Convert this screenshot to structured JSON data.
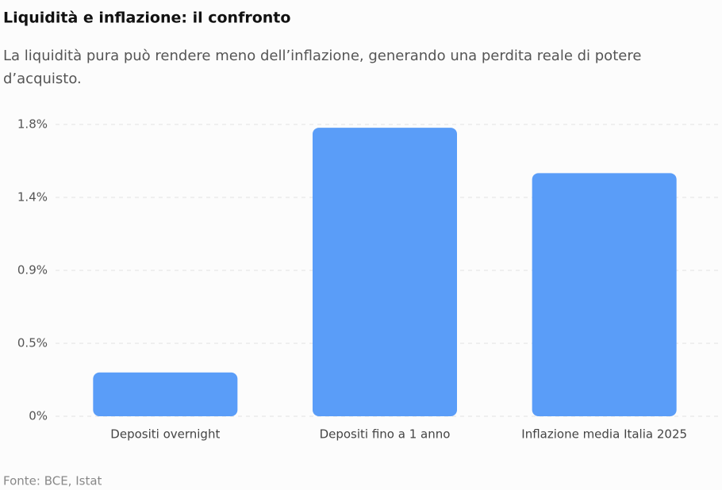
{
  "chart_data": {
    "type": "bar",
    "title": "Liquidità e inflazione: il confronto",
    "subtitle": [
      "La liquidità pura può rendere meno dell’inflazione, generando una perdita reale di potere",
      "d’acquisto."
    ],
    "categories": [
      "Depositi overnight",
      "Depositi fino a 1 anno",
      "Inflazione media Italia 2025"
    ],
    "values": [
      0.27,
      1.78,
      1.5
    ],
    "color": "#5a9df8",
    "ylim": [
      0,
      1.8
    ],
    "yticks": [
      {
        "value": 0,
        "label": "0%"
      },
      {
        "value": 0.45,
        "label": "0.5%"
      },
      {
        "value": 0.9,
        "label": "0.9%"
      },
      {
        "value": 1.35,
        "label": "1.4%"
      },
      {
        "value": 1.8,
        "label": "1.8%"
      }
    ],
    "grid": true,
    "source": "Fonte: BCE, Istat"
  }
}
